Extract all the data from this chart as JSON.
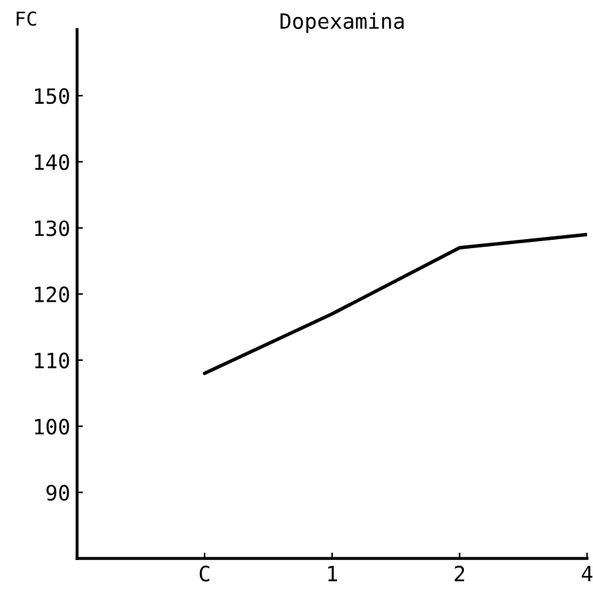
{
  "chart_data": {
    "type": "line",
    "title": "Dopexamina",
    "ylabel": "FC",
    "categories": [
      null,
      "C",
      "1",
      "2",
      "4"
    ],
    "series": [
      {
        "color": "#000000",
        "values": [
          null,
          108,
          117,
          127,
          129
        ]
      }
    ],
    "ylim": [
      80,
      160
    ],
    "yticks": [
      90,
      100,
      110,
      120,
      130,
      140,
      150
    ],
    "grid": false,
    "legend": false,
    "marker": "none",
    "line_style": "solid"
  }
}
